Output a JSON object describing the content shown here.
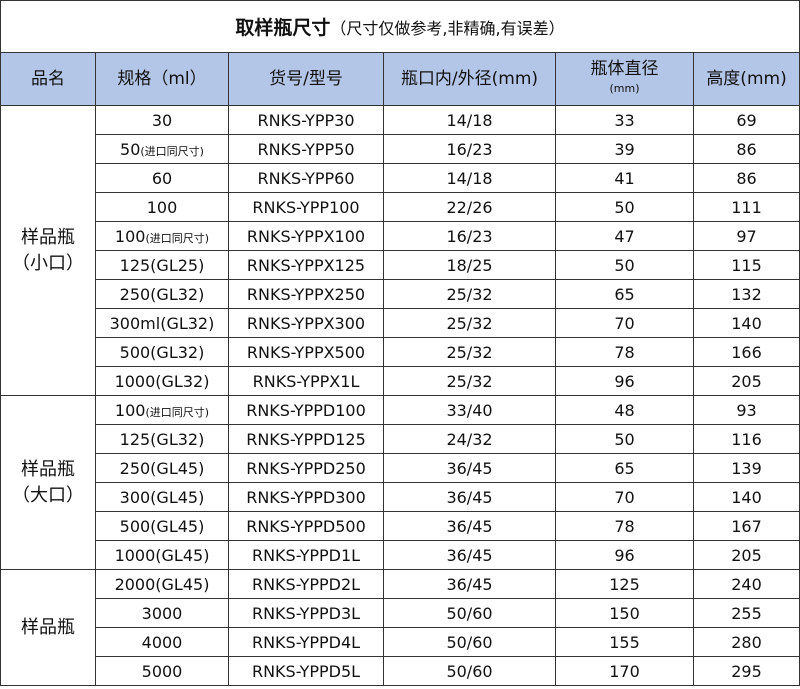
{
  "title": {
    "main": "取样瓶尺寸",
    "note": "（尺寸仅做参考,非精确,有误差）"
  },
  "header": [
    "品名",
    "规格（ml）",
    "货号/型号",
    "瓶口内/外径(mm)",
    {
      "text": "瓶体直径",
      "unit": "(mm)"
    },
    "高度(mm)"
  ],
  "groups": [
    {
      "name": "样品瓶",
      "sub": "（小口）",
      "rows": [
        {
          "spec": "30",
          "code": "RNKS-YPP30",
          "mouth": "14/18",
          "diameter": 33,
          "height": 69
        },
        {
          "spec": "50",
          "note": "(进口同尺寸)",
          "code": "RNKS-YPP50",
          "mouth": "16/23",
          "diameter": 39,
          "height": 86
        },
        {
          "spec": "60",
          "code": "RNKS-YPP60",
          "mouth": "14/18",
          "diameter": 41,
          "height": 86
        },
        {
          "spec": "100",
          "code": "RNKS-YPP100",
          "mouth": "22/26",
          "diameter": 50,
          "height": 111
        },
        {
          "spec": "100",
          "note": "(进口同尺寸)",
          "code": "RNKS-YPPX100",
          "mouth": "16/23",
          "diameter": 47,
          "height": 97
        },
        {
          "spec": "125(GL25)",
          "code": "RNKS-YPPX125",
          "mouth": "18/25",
          "diameter": 50,
          "height": 115
        },
        {
          "spec": "250(GL32)",
          "code": "RNKS-YPPX250",
          "mouth": "25/32",
          "diameter": 65,
          "height": 132
        },
        {
          "spec": "300ml(GL32)",
          "code": "RNKS-YPPX300",
          "mouth": "25/32",
          "diameter": 70,
          "height": 140
        },
        {
          "spec": "500(GL32)",
          "code": "RNKS-YPPX500",
          "mouth": "25/32",
          "diameter": 78,
          "height": 166
        },
        {
          "spec": "1000(GL32)",
          "code": "RNKS-YPPX1L",
          "mouth": "25/32",
          "diameter": 96,
          "height": 205
        }
      ]
    },
    {
      "name": "样品瓶",
      "sub": "（大口）",
      "rows": [
        {
          "spec": "100",
          "note": "(进口同尺寸)",
          "code": "RNKS-YPPD100",
          "mouth": "33/40",
          "diameter": 48,
          "height": 93
        },
        {
          "spec": "125(GL32)",
          "code": "RNKS-YPPD125",
          "mouth": "24/32",
          "diameter": 50,
          "height": 116
        },
        {
          "spec": "250(GL45)",
          "code": "RNKS-YPPD250",
          "mouth": "36/45",
          "diameter": 65,
          "height": 139
        },
        {
          "spec": "300(GL45)",
          "code": "RNKS-YPPD300",
          "mouth": "36/45",
          "diameter": 70,
          "height": 140
        },
        {
          "spec": "500(GL45)",
          "code": "RNKS-YPPD500",
          "mouth": "36/45",
          "diameter": 78,
          "height": 167
        },
        {
          "spec": "1000(GL45)",
          "code": "RNKS-YPPD1L",
          "mouth": "36/45",
          "diameter": 96,
          "height": 205
        }
      ]
    },
    {
      "name": "样品瓶",
      "rows": [
        {
          "spec": "2000(GL45)",
          "code": "RNKS-YPPD2L",
          "mouth": "36/45",
          "diameter": 125,
          "height": 240
        },
        {
          "spec": "3000",
          "code": "RNKS-YPPD3L",
          "mouth": "50/60",
          "diameter": 150,
          "height": 255
        },
        {
          "spec": "4000",
          "code": "RNKS-YPPD4L",
          "mouth": "50/60",
          "diameter": 155,
          "height": 280
        },
        {
          "spec": "5000",
          "code": "RNKS-YPPD5L",
          "mouth": "50/60",
          "diameter": 170,
          "height": 295
        }
      ]
    }
  ]
}
